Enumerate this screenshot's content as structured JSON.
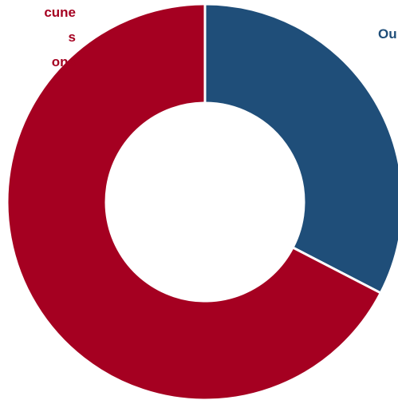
{
  "chart_data": {
    "type": "pie",
    "variant": "donut",
    "slices": [
      {
        "value": 32.6,
        "color": "#1f4e79",
        "label_lines": [
          "Ou"
        ]
      },
      {
        "value": 67.4,
        "color": "#a50021",
        "label_lines": [
          "cune",
          "s",
          "ons"
        ]
      }
    ]
  }
}
